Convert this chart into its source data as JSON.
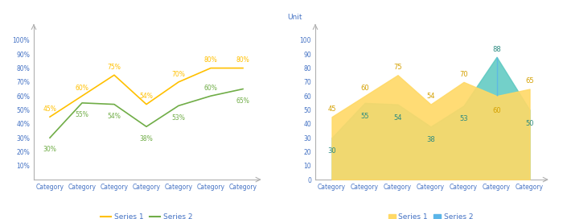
{
  "categories": [
    "Category",
    "Category",
    "Category",
    "Category",
    "Category",
    "Category",
    "Category"
  ],
  "series1": [
    45,
    60,
    75,
    54,
    70,
    80,
    80
  ],
  "series2": [
    30,
    55,
    54,
    38,
    53,
    60,
    65
  ],
  "series1_area": [
    45,
    60,
    75,
    54,
    70,
    60,
    65
  ],
  "series2_area": [
    30,
    55,
    54,
    38,
    53,
    88,
    50
  ],
  "color_line1": "#FFC000",
  "color_line2": "#70AD47",
  "color_area1": "#FFD966",
  "color_area2_teal": "#5BC8C0",
  "color_area2_blue": "#5BB5E8",
  "text_color": "#4472C4",
  "label_color1": "#D4A000",
  "label_color2_teal": "#2A8A80",
  "axis_color": "#B0B0B0",
  "bg_color": "#FFFFFF",
  "ylabel_right": "Unit",
  "legend_line": [
    "Series 1",
    "Series 2"
  ],
  "legend_area": [
    "Series 1",
    "Series 2"
  ]
}
